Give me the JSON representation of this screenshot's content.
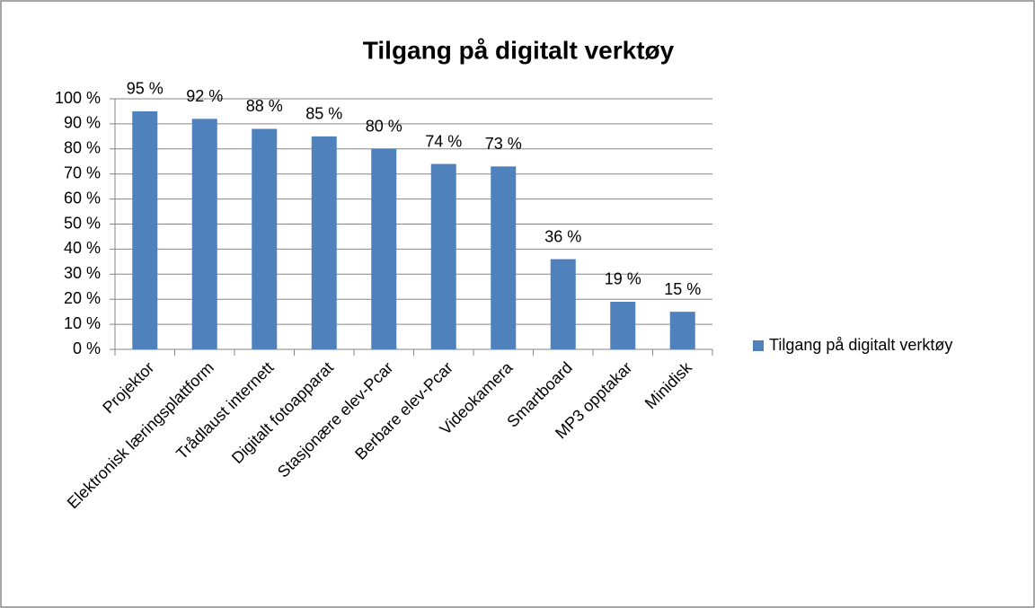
{
  "chart_data": {
    "type": "bar",
    "title": "Tilgang på digitalt verktøy",
    "categories": [
      "Projektor",
      "Elektronisk læringsplattform",
      "Trådlaust internett",
      "Digitalt fotoapparat",
      "Stasjonære elev-Pcar",
      "Berbare elev-Pcar",
      "Videokamera",
      "Smartboard",
      "MP3 opptakar",
      "Minidisk"
    ],
    "series": [
      {
        "name": "Tilgang på digitalt verktøy",
        "color": "#4f81bd",
        "values": [
          95,
          92,
          88,
          85,
          80,
          74,
          73,
          36,
          19,
          15
        ],
        "value_labels": [
          "95 %",
          "92 %",
          "88 %",
          "85 %",
          "80 %",
          "74 %",
          "73 %",
          "36 %",
          "19 %",
          "15 %"
        ]
      }
    ],
    "ylim": [
      0,
      100
    ],
    "yticks": [
      {
        "value": 0,
        "label": "0 %"
      },
      {
        "value": 10,
        "label": "10 %"
      },
      {
        "value": 20,
        "label": "20 %"
      },
      {
        "value": 30,
        "label": "30 %"
      },
      {
        "value": 40,
        "label": "40 %"
      },
      {
        "value": 50,
        "label": "50 %"
      },
      {
        "value": 60,
        "label": "60 %"
      },
      {
        "value": 70,
        "label": "70 %"
      },
      {
        "value": 80,
        "label": "80 %"
      },
      {
        "value": 90,
        "label": "90 %"
      },
      {
        "value": 100,
        "label": "100 %"
      }
    ],
    "grid": true,
    "legend": "right"
  }
}
